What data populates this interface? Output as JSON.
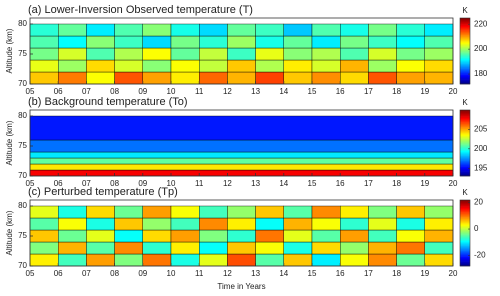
{
  "chart_data": [
    {
      "type": "heatmap",
      "title": "(a) Lower-Inversion Observed temperature (T)",
      "ylabel": "Altitude (km)",
      "colorbar_label": "K",
      "x_edges": [
        2005,
        2006,
        2007,
        2008,
        2009,
        2010,
        2011,
        2012,
        2013,
        2014,
        2015,
        2016,
        2017,
        2018,
        2019,
        2020
      ],
      "y_edges": [
        70,
        72,
        74,
        76,
        78,
        80
      ],
      "values": [
        [
          208,
          212,
          205,
          214,
          210,
          206,
          213,
          209,
          215,
          208,
          211,
          207,
          214,
          210,
          209
        ],
        [
          204,
          200,
          207,
          203,
          199,
          205,
          202,
          208,
          201,
          206,
          203,
          209,
          200,
          205,
          207
        ],
        [
          198,
          203,
          196,
          201,
          205,
          197,
          202,
          195,
          204,
          199,
          201,
          196,
          203,
          198,
          200
        ],
        [
          196,
          192,
          199,
          195,
          190,
          198,
          194,
          200,
          193,
          197,
          191,
          198,
          195,
          192,
          196
        ],
        [
          194,
          197,
          191,
          196,
          199,
          193,
          190,
          197,
          195,
          189,
          196,
          193,
          198,
          194,
          191
        ]
      ],
      "clim": [
        172,
        225
      ],
      "cticks": [
        180,
        200,
        220
      ],
      "xlim": [
        2005,
        2020
      ],
      "ylim": [
        70,
        81
      ],
      "yticks": [
        70,
        75,
        80
      ],
      "xticks": [
        {
          "value": 2005,
          "label": "05"
        },
        {
          "value": 2006,
          "label": "06"
        },
        {
          "value": 2007,
          "label": "07"
        },
        {
          "value": 2008,
          "label": "08"
        },
        {
          "value": 2009,
          "label": "09"
        },
        {
          "value": 2010,
          "label": "10"
        },
        {
          "value": 2011,
          "label": "11"
        },
        {
          "value": 2012,
          "label": "12"
        },
        {
          "value": 2013,
          "label": "13"
        },
        {
          "value": 2014,
          "label": "14"
        },
        {
          "value": 2015,
          "label": "15"
        },
        {
          "value": 2016,
          "label": "16"
        },
        {
          "value": 2017,
          "label": "17"
        },
        {
          "value": 2018,
          "label": "18"
        },
        {
          "value": 2019,
          "label": "19"
        },
        {
          "value": 2020,
          "label": "20"
        }
      ]
    },
    {
      "type": "heatmap",
      "title": "(b) Background temperature (To)",
      "ylabel": "Altitude (km)",
      "colorbar_label": "K",
      "x_edges": [
        2005,
        2020
      ],
      "y_edges": [
        70,
        71,
        72,
        73,
        74,
        76,
        80
      ],
      "values": [
        [
          208
        ],
        [
          204
        ],
        [
          201
        ],
        [
          199
        ],
        [
          197
        ],
        [
          195.5
        ]
      ],
      "clim": [
        193,
        210
      ],
      "cticks": [
        195,
        200,
        205
      ],
      "xlim": [
        2005,
        2020
      ],
      "ylim": [
        70,
        81
      ],
      "yticks": [
        70,
        75,
        80
      ],
      "xticks": [
        {
          "value": 2005,
          "label": "05"
        },
        {
          "value": 2006,
          "label": "06"
        },
        {
          "value": 2007,
          "label": "07"
        },
        {
          "value": 2008,
          "label": "08"
        },
        {
          "value": 2009,
          "label": "09"
        },
        {
          "value": 2010,
          "label": "10"
        },
        {
          "value": 2011,
          "label": "11"
        },
        {
          "value": 2012,
          "label": "12"
        },
        {
          "value": 2013,
          "label": "13"
        },
        {
          "value": 2014,
          "label": "14"
        },
        {
          "value": 2015,
          "label": "15"
        },
        {
          "value": 2016,
          "label": "16"
        },
        {
          "value": 2017,
          "label": "17"
        },
        {
          "value": 2018,
          "label": "18"
        },
        {
          "value": 2019,
          "label": "19"
        },
        {
          "value": 2020,
          "label": "20"
        }
      ]
    },
    {
      "type": "heatmap",
      "title": "(c) Perturbed temperature (Tp)",
      "ylabel": "Altitude (km)",
      "xlabel": "Time in Years",
      "colorbar_label": "K",
      "x_edges": [
        2005,
        2006,
        2007,
        2008,
        2009,
        2010,
        2011,
        2012,
        2013,
        2014,
        2015,
        2016,
        2017,
        2018,
        2019,
        2020
      ],
      "y_edges": [
        70,
        72,
        74,
        76,
        78,
        80
      ],
      "values": [
        [
          4,
          -6,
          8,
          -3,
          10,
          -8,
          2,
          12,
          -5,
          6,
          -10,
          3,
          9,
          -4,
          5
        ],
        [
          -3,
          7,
          -5,
          9,
          -7,
          4,
          -9,
          6,
          3,
          -8,
          5,
          -2,
          7,
          10,
          -6
        ],
        [
          6,
          -4,
          2,
          -9,
          5,
          8,
          -3,
          -7,
          10,
          2,
          -5,
          8,
          -6,
          3,
          7
        ],
        [
          -5,
          3,
          -8,
          6,
          -2,
          -6,
          9,
          4,
          -9,
          7,
          3,
          -7,
          2,
          -8,
          4
        ],
        [
          2,
          -8,
          5,
          -4,
          8,
          3,
          -6,
          -2,
          6,
          -5,
          9,
          4,
          -3,
          6,
          -2
        ]
      ],
      "clim": [
        -28,
        22
      ],
      "cticks": [
        -20,
        0,
        20
      ],
      "xlim": [
        2005,
        2020
      ],
      "ylim": [
        70,
        81
      ],
      "yticks": [
        70,
        75,
        80
      ],
      "xticks": [
        {
          "value": 2005,
          "label": "05"
        },
        {
          "value": 2006,
          "label": "06"
        },
        {
          "value": 2007,
          "label": "07"
        },
        {
          "value": 2008,
          "label": "08"
        },
        {
          "value": 2009,
          "label": "09"
        },
        {
          "value": 2010,
          "label": "10"
        },
        {
          "value": 2011,
          "label": "11"
        },
        {
          "value": 2012,
          "label": "12"
        },
        {
          "value": 2013,
          "label": "13"
        },
        {
          "value": 2014,
          "label": "14"
        },
        {
          "value": 2015,
          "label": "15"
        },
        {
          "value": 2016,
          "label": "16"
        },
        {
          "value": 2017,
          "label": "17"
        },
        {
          "value": 2018,
          "label": "18"
        },
        {
          "value": 2019,
          "label": "19"
        },
        {
          "value": 2020,
          "label": "20"
        }
      ]
    }
  ]
}
